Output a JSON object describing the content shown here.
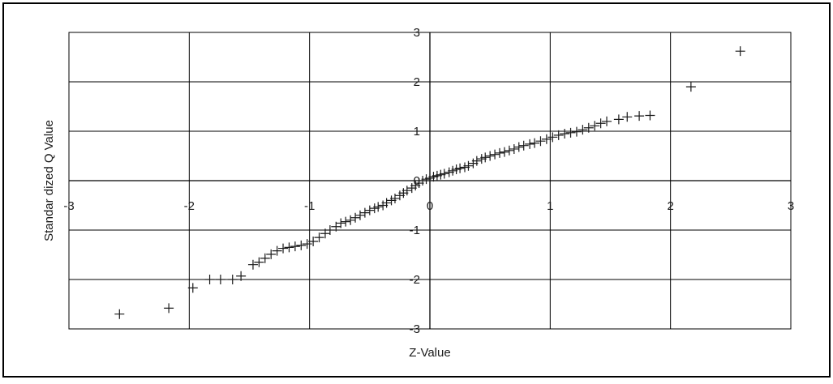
{
  "chart_data": {
    "type": "scatter",
    "title": "",
    "xlabel": "Z-Value",
    "ylabel": "Standar dized Q Value",
    "xlim": [
      -3,
      3
    ],
    "ylim": [
      -3,
      3
    ],
    "x_ticks": [
      "-3",
      "-2",
      "-1",
      "0",
      "1",
      "2",
      "3"
    ],
    "y_ticks": [
      "3",
      "2",
      "1",
      "0",
      "-1",
      "-2",
      "-3"
    ],
    "grid": true,
    "legend": "none",
    "marker": "plus",
    "colors": {
      "marker": "#1a1a1a",
      "grid": "#000000",
      "border": "#000000"
    },
    "points": [
      [
        -2.58,
        -2.7
      ],
      [
        -2.17,
        -2.58
      ],
      [
        -1.97,
        -2.17
      ],
      [
        -1.83,
        -2.0
      ],
      [
        -1.74,
        -2.0
      ],
      [
        -1.64,
        -2.0
      ],
      [
        -1.57,
        -1.93
      ],
      [
        -1.47,
        -1.7
      ],
      [
        -1.42,
        -1.65
      ],
      [
        -1.37,
        -1.57
      ],
      [
        -1.32,
        -1.49
      ],
      [
        -1.27,
        -1.42
      ],
      [
        -1.22,
        -1.37
      ],
      [
        -1.17,
        -1.35
      ],
      [
        -1.12,
        -1.33
      ],
      [
        -1.07,
        -1.31
      ],
      [
        -1.02,
        -1.28
      ],
      [
        -0.97,
        -1.23
      ],
      [
        -0.92,
        -1.15
      ],
      [
        -0.87,
        -1.07
      ],
      [
        -0.83,
        -1.0
      ],
      [
        -0.78,
        -0.93
      ],
      [
        -0.74,
        -0.86
      ],
      [
        -0.7,
        -0.83
      ],
      [
        -0.66,
        -0.8
      ],
      [
        -0.62,
        -0.75
      ],
      [
        -0.58,
        -0.7
      ],
      [
        -0.54,
        -0.65
      ],
      [
        -0.5,
        -0.6
      ],
      [
        -0.46,
        -0.56
      ],
      [
        -0.43,
        -0.53
      ],
      [
        -0.39,
        -0.5
      ],
      [
        -0.36,
        -0.45
      ],
      [
        -0.32,
        -0.4
      ],
      [
        -0.29,
        -0.36
      ],
      [
        -0.25,
        -0.3
      ],
      [
        -0.22,
        -0.25
      ],
      [
        -0.19,
        -0.2
      ],
      [
        -0.15,
        -0.15
      ],
      [
        -0.12,
        -0.1
      ],
      [
        -0.09,
        -0.05
      ],
      [
        -0.06,
        0.0
      ],
      [
        -0.03,
        0.03
      ],
      [
        0.0,
        0.05
      ],
      [
        0.03,
        0.08
      ],
      [
        0.06,
        0.1
      ],
      [
        0.09,
        0.12
      ],
      [
        0.12,
        0.14
      ],
      [
        0.16,
        0.17
      ],
      [
        0.19,
        0.2
      ],
      [
        0.22,
        0.23
      ],
      [
        0.25,
        0.25
      ],
      [
        0.29,
        0.27
      ],
      [
        0.32,
        0.3
      ],
      [
        0.36,
        0.35
      ],
      [
        0.39,
        0.4
      ],
      [
        0.43,
        0.44
      ],
      [
        0.46,
        0.47
      ],
      [
        0.5,
        0.5
      ],
      [
        0.54,
        0.53
      ],
      [
        0.58,
        0.56
      ],
      [
        0.62,
        0.58
      ],
      [
        0.66,
        0.61
      ],
      [
        0.7,
        0.64
      ],
      [
        0.74,
        0.68
      ],
      [
        0.78,
        0.71
      ],
      [
        0.83,
        0.74
      ],
      [
        0.87,
        0.76
      ],
      [
        0.92,
        0.8
      ],
      [
        0.97,
        0.84
      ],
      [
        1.02,
        0.88
      ],
      [
        1.07,
        0.92
      ],
      [
        1.12,
        0.95
      ],
      [
        1.17,
        0.97
      ],
      [
        1.22,
        0.99
      ],
      [
        1.27,
        1.03
      ],
      [
        1.32,
        1.07
      ],
      [
        1.37,
        1.11
      ],
      [
        1.42,
        1.16
      ],
      [
        1.47,
        1.2
      ],
      [
        1.57,
        1.24
      ],
      [
        1.64,
        1.29
      ],
      [
        1.74,
        1.31
      ],
      [
        1.83,
        1.32
      ],
      [
        2.17,
        1.9
      ],
      [
        2.58,
        2.62
      ]
    ]
  }
}
